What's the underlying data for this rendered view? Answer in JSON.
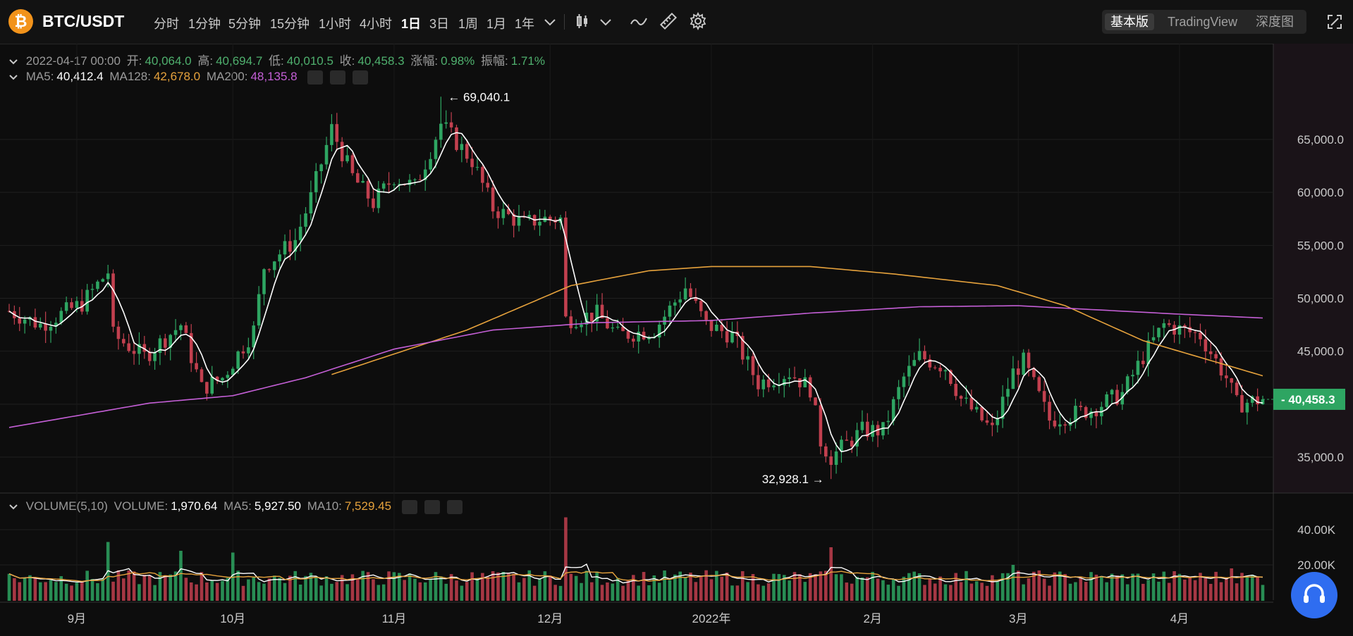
{
  "header": {
    "pair": "BTC/USDT",
    "logo_symbol": "₿",
    "timeframes": [
      "分时",
      "1分钟",
      "5分钟",
      "15分钟",
      "1小时",
      "4小时",
      "1日",
      "3日",
      "1周",
      "1月",
      "1年"
    ],
    "active_timeframe": "1日",
    "views": [
      "基本版",
      "TradingView",
      "深度图"
    ],
    "active_view": "基本版"
  },
  "ohlc": {
    "date": "2022-04-17 00:00",
    "open_label": "开:",
    "open": "40,064.0",
    "high_label": "高:",
    "high": "40,694.7",
    "low_label": "低:",
    "low": "40,010.5",
    "close_label": "收:",
    "close": "40,458.3",
    "change_label": "涨幅:",
    "change": "0.98%",
    "amp_label": "振幅:",
    "amp": "1.71%"
  },
  "ma": {
    "ma5_label": "MA5:",
    "ma5": "40,412.4",
    "ma128_label": "MA128:",
    "ma128": "42,678.0",
    "ma200_label": "MA200:",
    "ma200": "48,135.8"
  },
  "volume": {
    "title": "VOLUME(5,10)",
    "vol_label": "VOLUME:",
    "vol": "1,970.64",
    "ma5_label": "MA5:",
    "ma5": "5,927.50",
    "ma10_label": "MA10:",
    "ma10": "7,529.45"
  },
  "colors": {
    "up": "#2ea562",
    "down": "#c2404f",
    "ma5": "#ffffff",
    "ma128": "#e6a23c",
    "ma200": "#c45fd6",
    "bg": "#0d0d0d"
  },
  "chart_data": {
    "type": "candlestick",
    "y_ticks": [
      "65,000.0",
      "60,000.0",
      "55,000.0",
      "50,000.0",
      "45,000.0",
      "35,000.0"
    ],
    "y_tick_values": [
      65000,
      60000,
      55000,
      50000,
      45000,
      35000
    ],
    "ylim": [
      31500,
      69500
    ],
    "volume_ticks": [
      "40.00K",
      "20.00K"
    ],
    "volume_tick_values": [
      40000,
      20000
    ],
    "volume_ylim": [
      0,
      50000
    ],
    "x_ticks": [
      "9月",
      "10月",
      "11月",
      "12月",
      "2022年",
      "2月",
      "3月",
      "4月"
    ],
    "x_tick_dates": [
      "2021-09-01",
      "2021-10-01",
      "2021-11-01",
      "2021-12-01",
      "2022-01-01",
      "2022-02-01",
      "2022-03-01",
      "2022-04-01"
    ],
    "date_range": [
      "2021-08-19",
      "2022-04-17"
    ],
    "last_price": "40,458.3",
    "last_price_value": 40458.3,
    "high_marker": "69,040.1",
    "high_marker_date": "2021-11-10",
    "high_marker_value": 69040.1,
    "low_marker": "32,928.1",
    "low_marker_date": "2022-01-24",
    "low_marker_value": 32928.1,
    "price_anchors": [
      [
        "2021-08-19",
        48800
      ],
      [
        "2021-08-25",
        47500
      ],
      [
        "2021-09-02",
        49500
      ],
      [
        "2021-09-07",
        52500
      ],
      [
        "2021-09-08",
        46500
      ],
      [
        "2021-09-14",
        44500
      ],
      [
        "2021-09-21",
        47500
      ],
      [
        "2021-09-25",
        41500
      ],
      [
        "2021-09-29",
        42500
      ],
      [
        "2021-10-01",
        44000
      ],
      [
        "2021-10-05",
        47000
      ],
      [
        "2021-10-07",
        53000
      ],
      [
        "2021-10-13",
        55500
      ],
      [
        "2021-10-16",
        59500
      ],
      [
        "2021-10-20",
        66000
      ],
      [
        "2021-10-24",
        61500
      ],
      [
        "2021-10-28",
        59000
      ],
      [
        "2021-11-01",
        61500
      ],
      [
        "2021-11-05",
        60500
      ],
      [
        "2021-11-08",
        64000
      ],
      [
        "2021-11-10",
        66500
      ],
      [
        "2021-11-16",
        63000
      ],
      [
        "2021-11-20",
        58500
      ],
      [
        "2021-11-26",
        57000
      ],
      [
        "2021-11-29",
        57500
      ],
      [
        "2021-12-03",
        57500
      ],
      [
        "2021-12-04",
        48000
      ],
      [
        "2021-12-10",
        48500
      ],
      [
        "2021-12-14",
        46500
      ],
      [
        "2021-12-21",
        47000
      ],
      [
        "2021-12-27",
        51000
      ],
      [
        "2021-12-31",
        47500
      ],
      [
        "2022-01-05",
        46500
      ],
      [
        "2022-01-10",
        42000
      ],
      [
        "2022-01-16",
        43000
      ],
      [
        "2022-01-20",
        41500
      ],
      [
        "2022-01-22",
        36500
      ],
      [
        "2022-01-24",
        35000
      ],
      [
        "2022-01-30",
        37500
      ],
      [
        "2022-02-03",
        37500
      ],
      [
        "2022-02-07",
        42500
      ],
      [
        "2022-02-10",
        44500
      ],
      [
        "2022-02-15",
        43500
      ],
      [
        "2022-02-18",
        40500
      ],
      [
        "2022-02-24",
        37500
      ],
      [
        "2022-02-28",
        43000
      ],
      [
        "2022-03-02",
        44000
      ],
      [
        "2022-03-07",
        38500
      ],
      [
        "2022-03-15",
        39500
      ],
      [
        "2022-03-21",
        41000
      ],
      [
        "2022-03-25",
        44500
      ],
      [
        "2022-03-29",
        47500
      ],
      [
        "2022-04-05",
        46500
      ],
      [
        "2022-04-10",
        42500
      ],
      [
        "2022-04-12",
        40000
      ],
      [
        "2022-04-17",
        40458.3
      ]
    ],
    "ma128_anchors": [
      [
        "2021-10-20",
        42800
      ],
      [
        "2021-11-15",
        47000
      ],
      [
        "2021-12-05",
        51200
      ],
      [
        "2021-12-20",
        52600
      ],
      [
        "2022-01-01",
        53000
      ],
      [
        "2022-01-20",
        53000
      ],
      [
        "2022-02-05",
        52300
      ],
      [
        "2022-02-25",
        51200
      ],
      [
        "2022-03-10",
        49300
      ],
      [
        "2022-03-25",
        46000
      ],
      [
        "2022-04-17",
        42678
      ]
    ],
    "ma200_anchors": [
      [
        "2021-08-19",
        37800
      ],
      [
        "2021-09-15",
        40100
      ],
      [
        "2021-10-01",
        40800
      ],
      [
        "2021-10-15",
        42500
      ],
      [
        "2021-11-01",
        45200
      ],
      [
        "2021-11-20",
        47000
      ],
      [
        "2021-12-10",
        47700
      ],
      [
        "2022-01-01",
        47900
      ],
      [
        "2022-01-20",
        48600
      ],
      [
        "2022-02-10",
        49200
      ],
      [
        "2022-03-01",
        49300
      ],
      [
        "2022-04-01",
        48500
      ],
      [
        "2022-04-17",
        48135.8
      ]
    ],
    "volume_peaks": [
      [
        "2021-09-07",
        33000
      ],
      [
        "2021-09-21",
        28000
      ],
      [
        "2021-10-01",
        27000
      ],
      [
        "2021-12-04",
        47000
      ],
      [
        "2022-01-24",
        30000
      ],
      [
        "2022-02-28",
        20000
      ],
      [
        "2022-04-11",
        18000
      ]
    ]
  }
}
